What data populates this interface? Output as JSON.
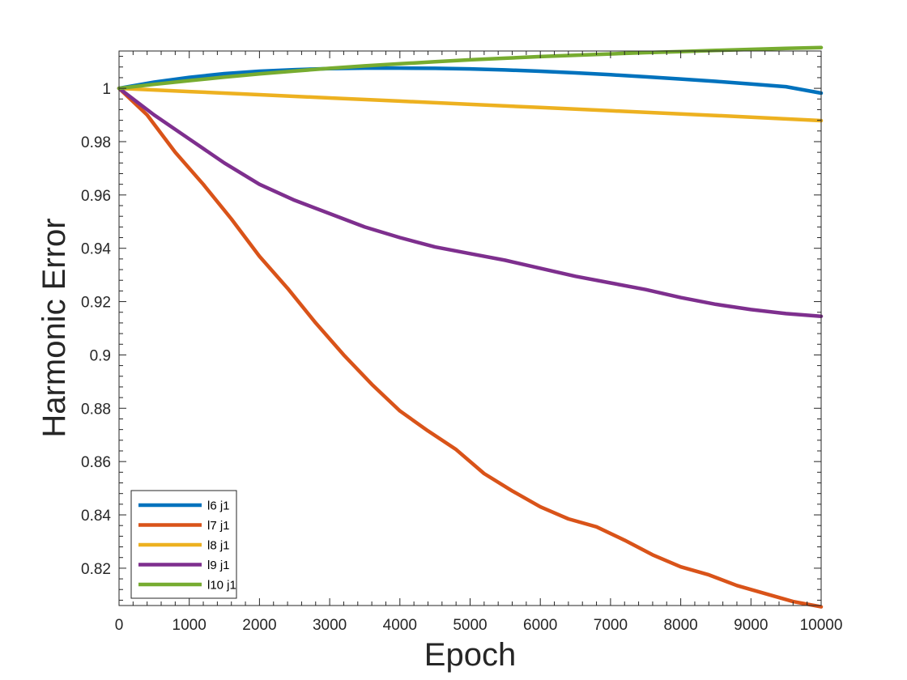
{
  "chart_data": {
    "type": "line",
    "title": "",
    "xlabel": "Epoch",
    "ylabel": "Harmonic Error",
    "xlim": [
      0,
      10000
    ],
    "ylim": [
      0.806,
      1.014
    ],
    "xticks": [
      0,
      1000,
      2000,
      3000,
      4000,
      5000,
      6000,
      7000,
      8000,
      9000,
      10000
    ],
    "xtick_labels": [
      "0",
      "1000",
      "2000",
      "3000",
      "4000",
      "5000",
      "6000",
      "7000",
      "8000",
      "9000",
      "10000"
    ],
    "yticks": [
      0.82,
      0.84,
      0.86,
      0.88,
      0.9,
      0.92,
      0.94,
      0.96,
      0.98,
      1.0
    ],
    "ytick_labels": [
      "0.82",
      "0.84",
      "0.86",
      "0.88",
      "0.9",
      "0.92",
      "0.94",
      "0.96",
      "0.98",
      "1"
    ],
    "grid": false,
    "legend_position": "bottom-left",
    "series": [
      {
        "name": "l6 j1",
        "color": "#0072BD",
        "x": [
          0,
          500,
          1000,
          1500,
          2000,
          2500,
          3000,
          3500,
          4000,
          4500,
          5000,
          5500,
          6000,
          6500,
          7000,
          7500,
          8000,
          8500,
          9000,
          9500,
          10000
        ],
        "y": [
          1.0,
          1.0023,
          1.0041,
          1.0055,
          1.0064,
          1.007,
          1.0074,
          1.0076,
          1.0076,
          1.0075,
          1.0073,
          1.0069,
          1.0064,
          1.0058,
          1.0051,
          1.0043,
          1.0035,
          1.0026,
          1.0016,
          1.0006,
          0.9982
        ]
      },
      {
        "name": "l7 j1",
        "color": "#D95319",
        "x": [
          0,
          400,
          800,
          1200,
          1600,
          2000,
          2400,
          2800,
          3200,
          3600,
          4000,
          4400,
          4800,
          5200,
          5600,
          6000,
          6400,
          6800,
          7200,
          7600,
          8000,
          8400,
          8800,
          9200,
          9600,
          10000
        ],
        "y": [
          1.0,
          0.99,
          0.976,
          0.964,
          0.951,
          0.937,
          0.925,
          0.912,
          0.9,
          0.889,
          0.879,
          0.8715,
          0.8645,
          0.8555,
          0.849,
          0.843,
          0.8385,
          0.8355,
          0.8305,
          0.825,
          0.8205,
          0.8175,
          0.8135,
          0.8105,
          0.8075,
          0.8055
        ]
      },
      {
        "name": "l8 j1",
        "color": "#EDB120",
        "x": [
          0,
          1000,
          2000,
          3000,
          4000,
          5000,
          6000,
          7000,
          8000,
          9000,
          10000
        ],
        "y": [
          1.0,
          0.9988,
          0.9976,
          0.9964,
          0.9952,
          0.994,
          0.9928,
          0.9916,
          0.9904,
          0.9892,
          0.9879
        ]
      },
      {
        "name": "l9 j1",
        "color": "#7E2F8E",
        "x": [
          0,
          500,
          1000,
          1500,
          2000,
          2500,
          3000,
          3500,
          4000,
          4500,
          5000,
          5500,
          6000,
          6500,
          7000,
          7500,
          8000,
          8500,
          9000,
          9500,
          10000
        ],
        "y": [
          1.0,
          0.99,
          0.981,
          0.972,
          0.964,
          0.958,
          0.953,
          0.948,
          0.944,
          0.9405,
          0.938,
          0.9355,
          0.9325,
          0.9295,
          0.927,
          0.9245,
          0.9215,
          0.919,
          0.917,
          0.9155,
          0.9145
        ]
      },
      {
        "name": "l10 j1",
        "color": "#77AC30",
        "x": [
          0,
          500,
          1000,
          1500,
          2000,
          2500,
          3000,
          3500,
          4000,
          4500,
          5000,
          5500,
          6000,
          6500,
          7000,
          7500,
          8000,
          8500,
          9000,
          9500,
          10000
        ],
        "y": [
          1.0,
          1.0015,
          1.0029,
          1.0042,
          1.0054,
          1.0065,
          1.0075,
          1.0084,
          1.0092,
          1.01,
          1.0107,
          1.0113,
          1.0119,
          1.0124,
          1.0129,
          1.0134,
          1.0138,
          1.0142,
          1.0146,
          1.015,
          1.0153
        ]
      }
    ]
  }
}
